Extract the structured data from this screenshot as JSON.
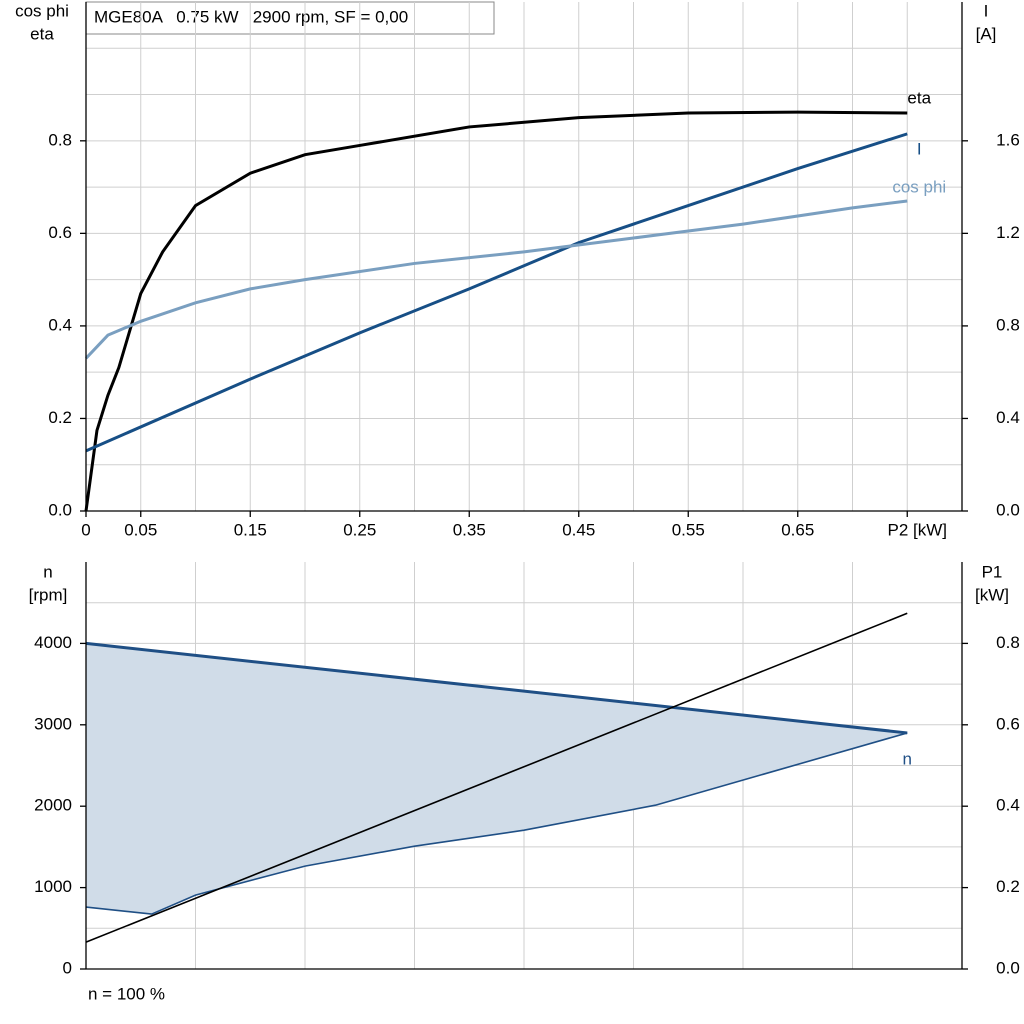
{
  "chart_data": [
    {
      "type": "line",
      "title": "MGE80A   0.75 kW   2900 rpm, SF = 0,00",
      "ylabel": [
        "cos phi",
        "eta"
      ],
      "y2label": [
        "I",
        "[A]"
      ],
      "xlim": [
        0,
        0.8
      ],
      "xticks": [
        0,
        0.05,
        0.15,
        0.25,
        0.35,
        0.45,
        0.55,
        0.65,
        {
          "value": 0.75,
          "label": "P2 [kW]"
        }
      ],
      "xgrid": [
        0.05,
        0.1,
        0.15,
        0.2,
        0.25,
        0.3,
        0.35,
        0.4,
        0.45,
        0.5,
        0.55,
        0.6,
        0.65,
        0.7,
        0.75
      ],
      "ylim": [
        0,
        1.1
      ],
      "yticks": [
        {
          "value": 0,
          "label": "0.0"
        },
        0.2,
        0.4,
        0.6,
        0.8
      ],
      "ygrid": [
        0.1,
        0.2,
        0.3,
        0.4,
        0.5,
        0.6,
        0.7,
        0.8,
        0.9,
        1.0
      ],
      "y2lim": [
        0,
        2.2
      ],
      "y2ticks": [
        {
          "value": 0,
          "label": "0.0"
        },
        0.4,
        0.8,
        1.2,
        1.6
      ],
      "series": [
        {
          "name": "eta",
          "color": "#000000",
          "x": [
            0,
            0.01,
            0.02,
            0.03,
            0.05,
            0.07,
            0.1,
            0.15,
            0.2,
            0.25,
            0.35,
            0.45,
            0.55,
            0.65,
            0.75
          ],
          "values": [
            0,
            0.174,
            0.25,
            0.31,
            0.47,
            0.56,
            0.66,
            0.73,
            0.77,
            0.79,
            0.83,
            0.85,
            0.86,
            0.862,
            0.86
          ]
        },
        {
          "name": "I",
          "color": "#174f86",
          "axis": "y2",
          "x": [
            0,
            0.15,
            0.25,
            0.35,
            0.45,
            0.55,
            0.65,
            0.75
          ],
          "values": [
            0.26,
            0.57,
            0.77,
            0.96,
            1.16,
            1.32,
            1.48,
            1.63
          ]
        },
        {
          "name": "cos phi",
          "color": "#7a9fc0",
          "x": [
            0,
            0.02,
            0.05,
            0.1,
            0.15,
            0.2,
            0.3,
            0.4,
            0.5,
            0.55,
            0.6,
            0.7,
            0.75
          ],
          "values": [
            0.33,
            0.38,
            0.41,
            0.45,
            0.48,
            0.5,
            0.535,
            0.56,
            0.59,
            0.605,
            0.62,
            0.655,
            0.67
          ]
        }
      ]
    },
    {
      "type": "line",
      "ylabel": [
        "n",
        "[rpm]"
      ],
      "y2label": [
        "P1",
        "[kW]"
      ],
      "footnote": "n = 100 %",
      "xlim": [
        0,
        0.8
      ],
      "xgrid": [
        0.1,
        0.2,
        0.3,
        0.4,
        0.5,
        0.6,
        0.7
      ],
      "ylim": [
        0,
        5000
      ],
      "yticks": [
        0,
        1000,
        2000,
        3000,
        4000
      ],
      "ygrid": [
        500,
        1000,
        1500,
        2000,
        2500,
        3000,
        3500,
        4000,
        4500
      ],
      "y2lim": [
        0,
        1.0
      ],
      "y2ticks": [
        {
          "value": 0,
          "label": "0.0"
        },
        0.2,
        0.4,
        0.6,
        0.8
      ],
      "fill_color": "#d0dce8",
      "series": [
        {
          "name": "n",
          "color": "#1f4f85",
          "x": [
            0,
            0.75
          ],
          "values": [
            4000,
            2900
          ]
        },
        {
          "color": "#1f4f85",
          "x": [
            0,
            0.06,
            0.1,
            0.2,
            0.3,
            0.4,
            0.52,
            0.75
          ],
          "values": [
            761,
            675,
            908,
            1264,
            1509,
            1705,
            2012,
            2900
          ]
        },
        {
          "color": "#000000",
          "axis": "y2",
          "x": [
            0,
            0.75
          ],
          "values": [
            0.066,
            0.874
          ]
        }
      ]
    }
  ]
}
